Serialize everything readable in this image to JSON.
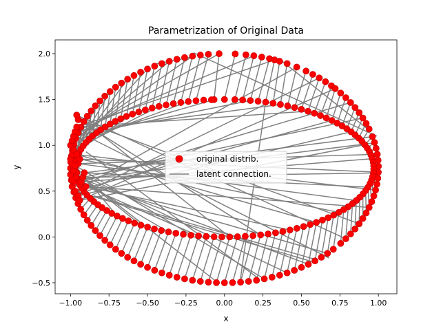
{
  "chart_data": {
    "type": "scatter",
    "title": "Parametrization of Original Data",
    "xlabel": "x",
    "ylabel": "y",
    "xlim": [
      -1.1,
      1.12
    ],
    "ylim": [
      -0.62,
      2.15
    ],
    "xticks": [
      -1.0,
      -0.75,
      -0.5,
      -0.25,
      0.0,
      0.25,
      0.5,
      0.75,
      1.0
    ],
    "xtick_labels": [
      "−1.00",
      "−0.75",
      "−0.50",
      "−0.25",
      "0.00",
      "0.25",
      "0.50",
      "0.75",
      "1.00"
    ],
    "yticks": [
      -0.5,
      0.0,
      0.5,
      1.0,
      1.5,
      2.0
    ],
    "ytick_labels": [
      "−0.5",
      "0.0",
      "0.5",
      "1.0",
      "1.5",
      "2.0"
    ],
    "grid": false,
    "legend_position": "center",
    "series": [
      {
        "name": "original distrib.",
        "kind": "scatter",
        "color": "#ff0000",
        "edge_color": "#cc0000",
        "description": "points on an outer ellipse (center (0,0.75), rx 1.0, ry 1.25) and an inner ellipse (center (0,0.75), rx 0.97, ry 0.75), plus points on a narrow band near x≈-0.97"
      },
      {
        "name": "latent connection.",
        "kind": "line",
        "color": "#808080"
      }
    ],
    "outer_ellipse": {
      "cx": 0.0,
      "cy": 0.75,
      "rx": 1.0,
      "ry": 1.25
    },
    "inner_ellipse": {
      "cx": 0.0,
      "cy": 0.75,
      "rx": 0.97,
      "ry": 0.75
    },
    "outer_angles_deg": [
      92,
      86,
      82,
      79,
      76,
      73,
      71,
      69,
      66,
      62,
      58,
      55,
      52,
      49,
      46,
      44,
      41,
      38,
      35,
      32,
      29,
      26,
      23,
      20,
      16,
      13,
      10,
      7,
      4,
      1,
      -2,
      -5,
      -8,
      -11,
      -14,
      -17,
      -20,
      -23,
      -26,
      -29,
      -32,
      -35,
      -38,
      -41,
      -45,
      -48,
      -51,
      -54,
      -57,
      -60,
      -63,
      -66,
      -69,
      -72,
      -75,
      -78,
      -81,
      -84,
      -87,
      -90,
      -93,
      -96,
      -99,
      -102,
      -105,
      -108,
      -111,
      -114,
      -117,
      -120,
      -123,
      -126,
      -129,
      -132,
      -135,
      -138,
      -141,
      -144,
      -147,
      -150,
      -153,
      -156,
      -159,
      -162,
      -165,
      -168,
      -171,
      -174,
      -177,
      -180,
      -183,
      -186,
      -189,
      -192,
      -195,
      -198,
      -201,
      -204,
      -207,
      -210,
      -213,
      -216,
      -219,
      -222,
      -225,
      -228,
      -231,
      -234,
      -237,
      -240,
      -243,
      -246,
      -249,
      -252,
      -255,
      -258,
      -261,
      -264
    ],
    "inner_angles_deg": [
      94,
      90,
      86,
      83,
      80,
      77,
      74,
      71,
      68,
      65,
      62,
      59,
      56,
      53,
      50,
      47,
      44,
      41,
      38,
      35,
      32,
      29,
      26,
      23,
      20,
      17,
      14,
      11,
      8,
      5,
      2,
      -1,
      -4,
      -7,
      -10,
      -13,
      -16,
      -19,
      -22,
      -25,
      -28,
      -31,
      -34,
      -37,
      -40,
      -43,
      -46,
      -49,
      -52,
      -55,
      -58,
      -61,
      -64,
      -67,
      -70,
      -73,
      -76,
      -79,
      -82,
      -85,
      -88,
      -91,
      -94,
      -97,
      -100,
      -103,
      -106,
      -109,
      -112,
      -115,
      -118,
      -121,
      -124,
      -127,
      -130,
      -133,
      -136,
      -139,
      -142,
      -145,
      -148,
      -151,
      -154,
      -157,
      -160,
      -163,
      -166,
      -169,
      -172,
      -175,
      -178,
      -181,
      -184,
      -187,
      -190,
      -193,
      -196,
      -199,
      -202,
      -205,
      -208,
      -211,
      -214,
      -217,
      -220,
      -223,
      -226,
      -229,
      -232,
      -235,
      -238,
      -241,
      -244,
      -247,
      -250,
      -253,
      -256,
      -259,
      -262,
      -265
    ],
    "band_points": [
      [
        -0.99,
        0.55
      ],
      [
        -0.98,
        0.6
      ],
      [
        -0.97,
        0.65
      ],
      [
        -0.96,
        0.7
      ],
      [
        -0.98,
        0.75
      ],
      [
        -0.99,
        0.8
      ],
      [
        -1.0,
        0.85
      ],
      [
        -0.99,
        0.9
      ],
      [
        -0.98,
        0.95
      ],
      [
        -1.0,
        1.0
      ],
      [
        -0.99,
        1.05
      ],
      [
        -0.98,
        1.1
      ],
      [
        -0.97,
        1.15
      ],
      [
        -0.96,
        1.2
      ],
      [
        -0.97,
        0.5
      ],
      [
        -0.95,
        0.45
      ],
      [
        -0.94,
        0.4
      ],
      [
        -0.93,
        0.6
      ],
      [
        -0.92,
        0.65
      ],
      [
        -0.91,
        0.7
      ],
      [
        -0.95,
        0.8
      ],
      [
        -0.94,
        0.85
      ],
      [
        -0.96,
        0.9
      ],
      [
        -0.9,
        0.55
      ],
      [
        -0.95,
        1.28
      ],
      [
        -0.96,
        1.33
      ],
      [
        -0.99,
        0.62
      ],
      [
        -1.0,
        0.68
      ],
      [
        -0.98,
        0.72
      ],
      [
        -0.97,
        0.78
      ]
    ],
    "long_connections": [
      [
        [
          0.1,
          -0.5
        ],
        [
          0.27,
          1.5
        ]
      ],
      [
        [
          -0.97,
          0.62
        ],
        [
          0.99,
          1.03
        ]
      ],
      [
        [
          0.57,
          -0.27
        ],
        [
          -0.97,
          0.5
        ]
      ],
      [
        [
          0.22,
          -0.45
        ],
        [
          -0.9,
          0.93
        ]
      ],
      [
        [
          -0.2,
          2.01
        ],
        [
          0.99,
          1.1
        ]
      ],
      [
        [
          -0.47,
          1.88
        ],
        [
          -0.22,
          1.96
        ]
      ],
      [
        [
          0.68,
          -0.23
        ],
        [
          -0.86,
          1.07
        ]
      ],
      [
        [
          0.35,
          1.95
        ],
        [
          0.95,
          1.15
        ]
      ],
      [
        [
          0.6,
          -0.25
        ],
        [
          -0.85,
          0.45
        ]
      ],
      [
        [
          -0.05,
          -0.49
        ],
        [
          -0.92,
          0.65
        ]
      ]
    ]
  }
}
